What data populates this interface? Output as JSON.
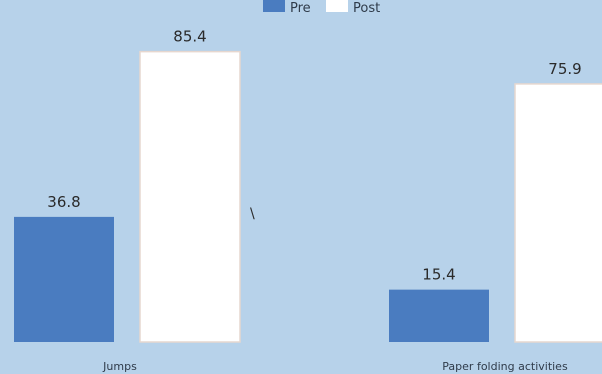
{
  "chart_data": {
    "type": "bar",
    "title": "",
    "xlabel": "",
    "ylabel": "",
    "categories": [
      "Jumps",
      "Paper folding activities"
    ],
    "series": [
      {
        "name": "Pre",
        "values": [
          36.8,
          15.4
        ],
        "color": "#4a7cc0"
      },
      {
        "name": "Post",
        "values": [
          85.4,
          75.9
        ],
        "color": "#ffffff"
      }
    ],
    "value_labels": [
      [
        "36.8",
        "15.4"
      ],
      [
        "85.4",
        "75.9"
      ]
    ],
    "ylim": [
      0,
      100
    ],
    "grid": false,
    "legend": "top-center",
    "annotation": "\\"
  }
}
